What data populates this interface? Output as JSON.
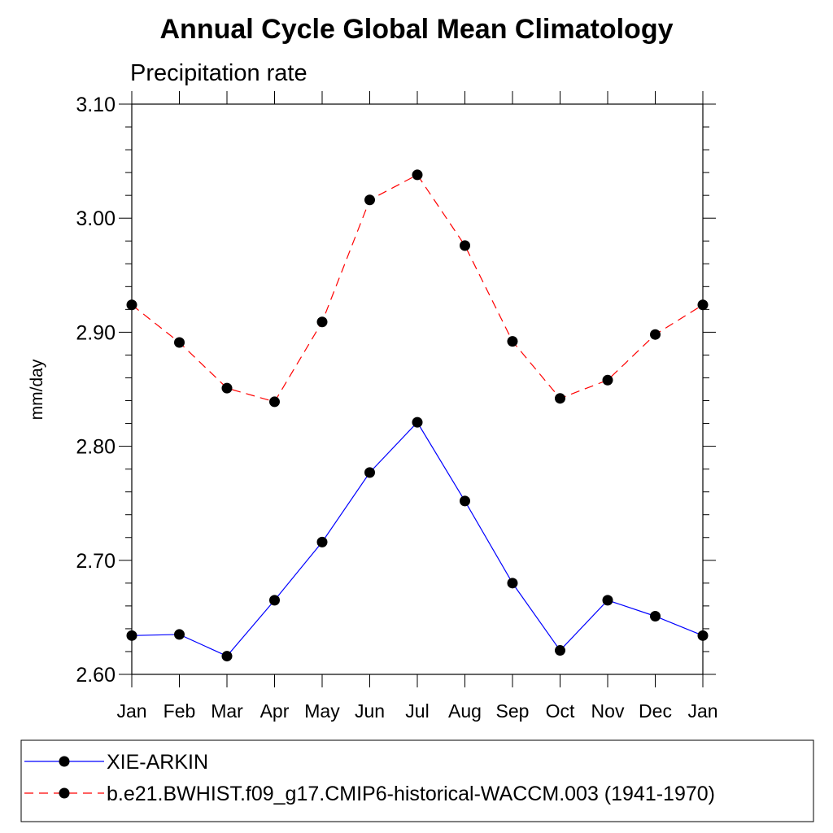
{
  "chart_data": {
    "type": "line",
    "title": "Annual Cycle Global Mean Climatology",
    "subtitle": "Precipitation rate",
    "xlabel": "",
    "ylabel": "mm/day",
    "categories": [
      "Jan",
      "Feb",
      "Mar",
      "Apr",
      "May",
      "Jun",
      "Jul",
      "Aug",
      "Sep",
      "Oct",
      "Nov",
      "Dec",
      "Jan"
    ],
    "ylim": [
      2.6,
      3.1
    ],
    "yticks": [
      "2.60",
      "2.70",
      "2.80",
      "2.90",
      "3.00",
      "3.10"
    ],
    "legend_position": "bottom",
    "grid": false,
    "series": [
      {
        "name": "XIE-ARKIN",
        "color": "#0000ff",
        "dash": "solid",
        "marker": "filled-circle",
        "values": [
          2.634,
          2.635,
          2.616,
          2.665,
          2.716,
          2.777,
          2.821,
          2.752,
          2.68,
          2.621,
          2.665,
          2.651,
          2.634
        ]
      },
      {
        "name": "b.e21.BWHIST.f09_g17.CMIP6-historical-WACCM.003 (1941-1970)",
        "color": "#ff0000",
        "dash": "dashed",
        "marker": "filled-circle",
        "values": [
          2.924,
          2.891,
          2.851,
          2.839,
          2.909,
          3.016,
          3.038,
          2.976,
          2.892,
          2.842,
          2.858,
          2.898,
          2.924
        ]
      }
    ]
  }
}
